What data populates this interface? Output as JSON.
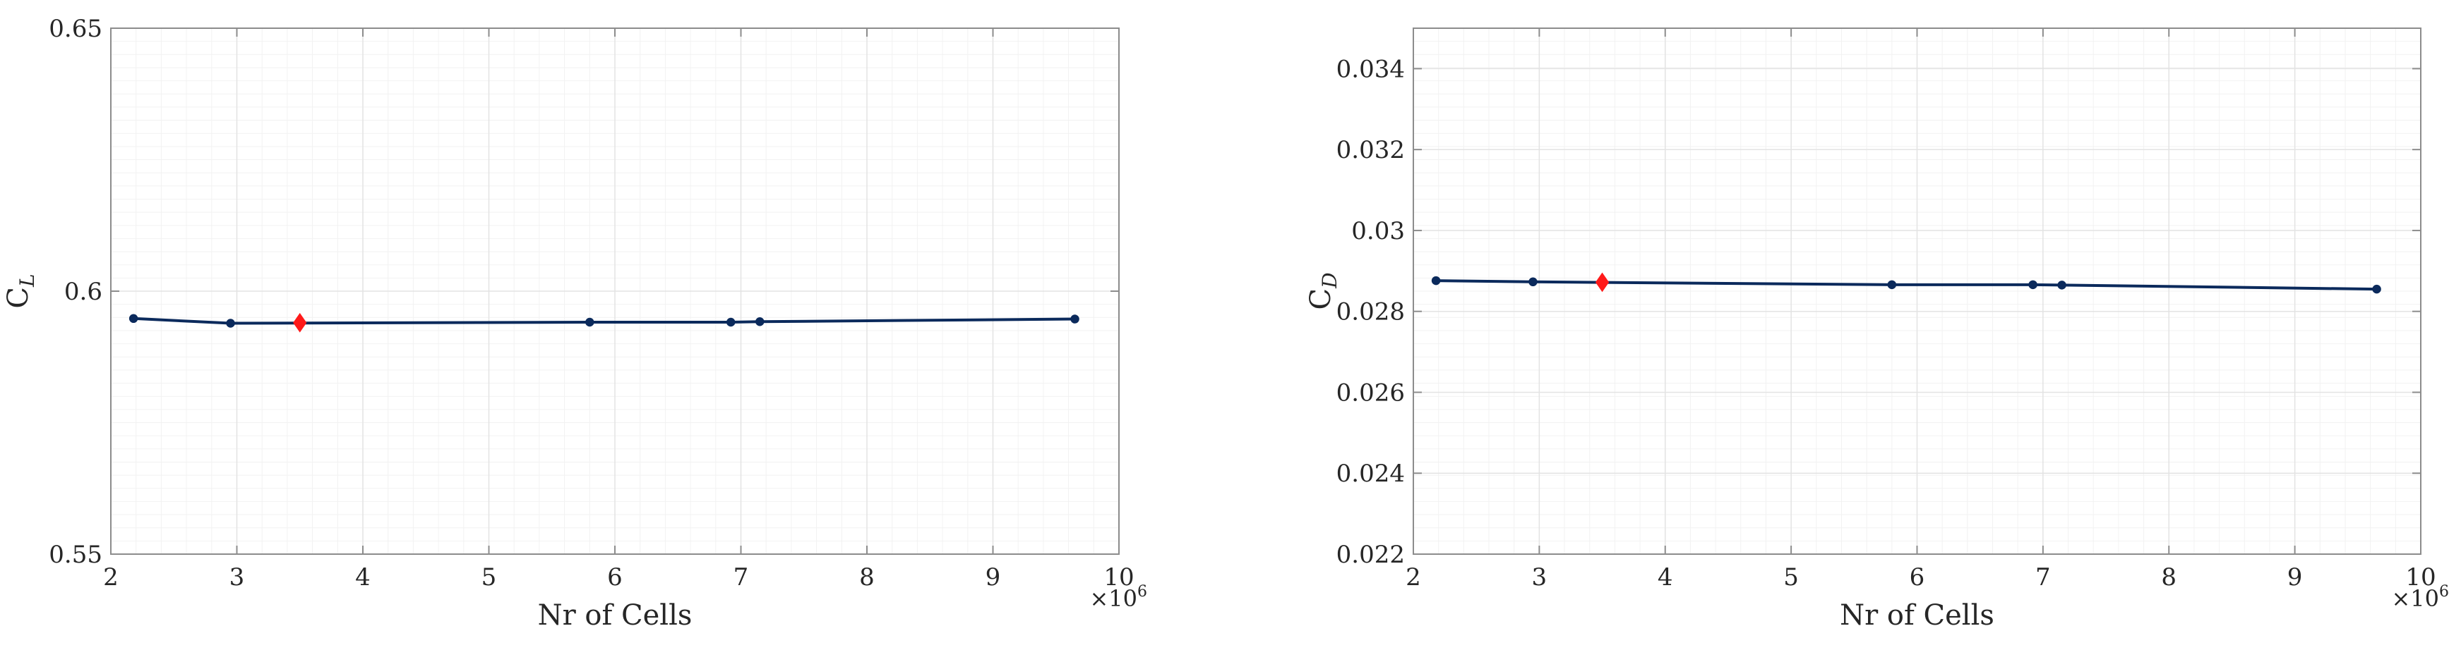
{
  "chart_data": [
    {
      "type": "line",
      "xlabel": "Nr of Cells",
      "ylabel_main": "C",
      "ylabel_sub": "L",
      "x_exponent_base": "×10",
      "x_exponent_power": "6",
      "xlim": [
        2,
        10
      ],
      "ylim": [
        0.55,
        0.65
      ],
      "xticks": [
        2,
        3,
        4,
        5,
        6,
        7,
        8,
        9,
        10
      ],
      "yticks": [
        0.55,
        0.6,
        0.65
      ],
      "ytick_labels": [
        "0.55",
        "0.6",
        "0.65"
      ],
      "grid": true,
      "minor_grid": true,
      "series": [
        {
          "x": [
            2.18,
            2.95,
            5.8,
            6.92,
            7.15,
            9.65
          ],
          "y": [
            0.5948,
            0.5939,
            0.5941,
            0.5941,
            0.5942,
            0.5947
          ],
          "color": "#0b2a5c"
        }
      ],
      "highlight": {
        "x": 3.5,
        "y": 0.594,
        "color": "#ff1a1a"
      }
    },
    {
      "type": "line",
      "xlabel": "Nr of Cells",
      "ylabel_main": "C",
      "ylabel_sub": "D",
      "x_exponent_base": "×10",
      "x_exponent_power": "6",
      "xlim": [
        2,
        10
      ],
      "ylim": [
        0.022,
        0.035
      ],
      "xticks": [
        2,
        3,
        4,
        5,
        6,
        7,
        8,
        9,
        10
      ],
      "yticks": [
        0.022,
        0.024,
        0.026,
        0.028,
        0.03,
        0.032,
        0.034
      ],
      "ytick_labels": [
        "0.022",
        "0.024",
        "0.026",
        "0.028",
        "0.03",
        "0.032",
        "0.034"
      ],
      "grid": true,
      "minor_grid": true,
      "series": [
        {
          "x": [
            2.18,
            2.95,
            5.8,
            6.92,
            7.15,
            9.65
          ],
          "y": [
            0.02876,
            0.02873,
            0.02866,
            0.02866,
            0.02865,
            0.02855
          ],
          "color": "#0b2a5c"
        }
      ],
      "highlight": {
        "x": 3.5,
        "y": 0.02872,
        "color": "#ff1a1a"
      }
    }
  ]
}
